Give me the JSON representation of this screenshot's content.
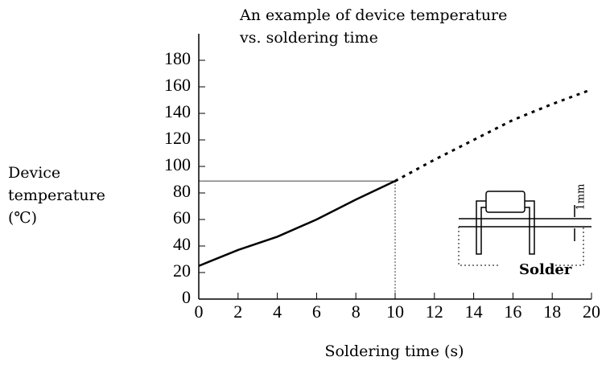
{
  "chart_data": {
    "type": "line",
    "title": [
      "An example of device temperature",
      "vs. soldering time"
    ],
    "y_label": [
      "Device",
      "temperature",
      "(℃)"
    ],
    "x_label": "Soldering time  (s)",
    "x": [
      0,
      2,
      4,
      6,
      8,
      10,
      12,
      14,
      16,
      18,
      20
    ],
    "series": [
      {
        "color": "#000000",
        "style": "solid",
        "values": [
          25,
          37,
          47,
          60,
          75,
          89,
          null,
          null,
          null,
          null,
          null
        ]
      },
      {
        "color": "#000000",
        "style": "dashed",
        "values": [
          null,
          null,
          null,
          null,
          null,
          89,
          105,
          120,
          135,
          147,
          158
        ]
      }
    ],
    "xlim": [
      0,
      20
    ],
    "xticks": [
      0,
      2,
      4,
      6,
      8,
      10,
      12,
      14,
      16,
      18,
      20
    ],
    "ylim": [
      0,
      200
    ],
    "yticks": [
      0,
      20,
      40,
      60,
      80,
      100,
      120,
      140,
      160,
      180
    ],
    "guide_index": 5,
    "inset": {
      "label": "Solder",
      "dimension": "1mm"
    }
  }
}
